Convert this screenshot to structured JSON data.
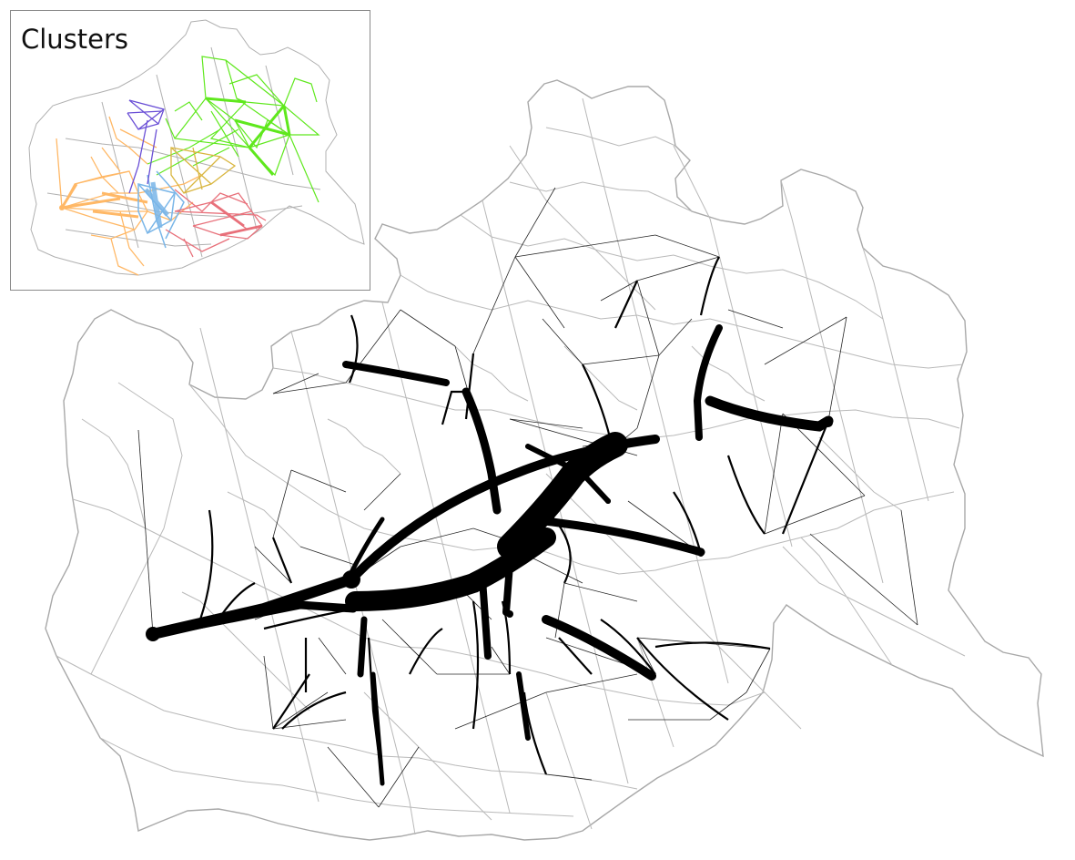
{
  "inset": {
    "title": "Clusters"
  },
  "colors": {
    "district_outline": "#9e9e9e",
    "flow": "#000000",
    "cluster_green": "#5fe81d",
    "cluster_orange": "#ffb866",
    "cluster_blue": "#7ab6e8",
    "cluster_red": "#e8707a",
    "cluster_purple": "#6a4fd6",
    "cluster_yellow": "#d9b640"
  },
  "icons": {
    "main": "flow-network-map",
    "inset": "cluster-network-map"
  }
}
